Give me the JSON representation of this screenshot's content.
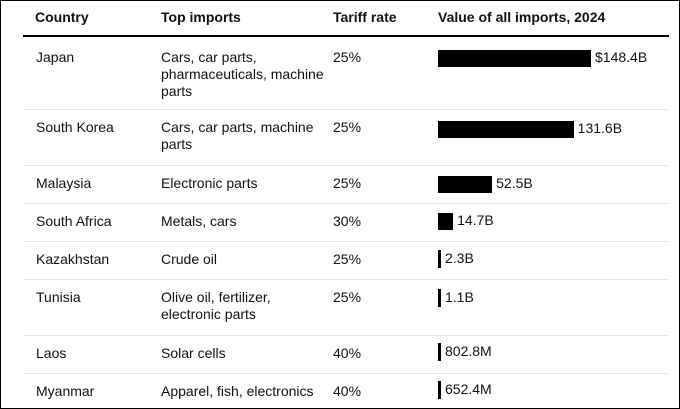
{
  "headers": {
    "country": "Country",
    "imports": "Top imports",
    "tariff": "Tariff rate",
    "value": "Value of all imports, 2024"
  },
  "chart_data": {
    "type": "table",
    "title": "",
    "columns": [
      "Country",
      "Top imports",
      "Tariff rate",
      "Value of all imports, 2024"
    ],
    "rows": [
      {
        "country": "Japan",
        "imports": "Cars, car parts, pharmaceuticals, machine parts",
        "tariff": "25%",
        "value": 148.4,
        "value_label": "$148.4B"
      },
      {
        "country": "South Korea",
        "imports": "Cars, car parts, machine parts",
        "tariff": "25%",
        "value": 131.6,
        "value_label": "131.6B"
      },
      {
        "country": "Malaysia",
        "imports": "Electronic parts",
        "tariff": "25%",
        "value": 52.5,
        "value_label": "52.5B"
      },
      {
        "country": "South Africa",
        "imports": "Metals, cars",
        "tariff": "30%",
        "value": 14.7,
        "value_label": "14.7B"
      },
      {
        "country": "Kazakhstan",
        "imports": "Crude oil",
        "tariff": "25%",
        "value": 2.3,
        "value_label": "2.3B"
      },
      {
        "country": "Tunisia",
        "imports": "Olive oil, fertilizer, electronic parts",
        "tariff": "25%",
        "value": 1.1,
        "value_label": "1.1B"
      },
      {
        "country": "Laos",
        "imports": "Solar cells",
        "tariff": "40%",
        "value": 0.8028,
        "value_label": "802.8M"
      },
      {
        "country": "Myanmar",
        "imports": "Apparel, fish, electronics",
        "tariff": "40%",
        "value": 0.6524,
        "value_label": "652.4M"
      }
    ],
    "bar_color": "#000000"
  }
}
